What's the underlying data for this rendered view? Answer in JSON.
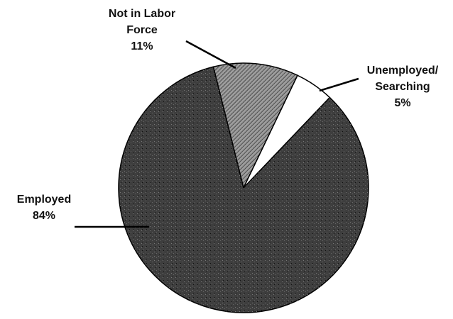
{
  "chart_data": {
    "type": "pie",
    "categories": [
      "Not in Labor\nForce",
      "Unemployed/\nSearching",
      "Employed"
    ],
    "values": [
      11,
      5,
      84
    ],
    "value_labels": [
      "11%",
      "5%",
      "84%"
    ],
    "colors": [
      "#9c9c9c",
      "#ffffff",
      "#3e3e3e"
    ]
  }
}
